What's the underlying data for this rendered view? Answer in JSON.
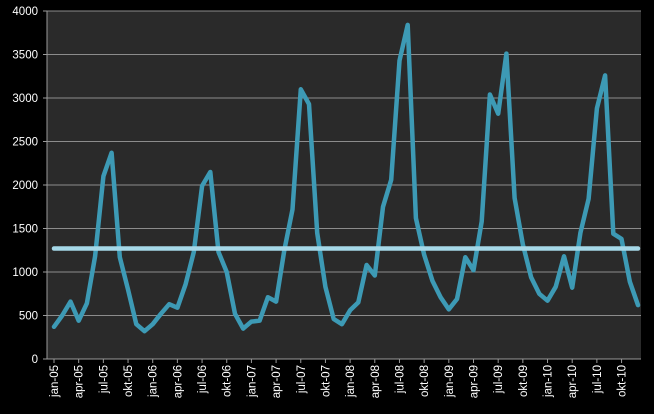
{
  "chart_data": {
    "type": "line",
    "title": "",
    "xlabel": "",
    "ylabel": "",
    "ylim": [
      0,
      4000
    ],
    "y_ticks": [
      0,
      500,
      1000,
      1500,
      2000,
      2500,
      3000,
      3500,
      4000
    ],
    "grid": true,
    "legend": "none",
    "x_tick_labels": [
      "jan-05",
      "apr-05",
      "jul-05",
      "okt-05",
      "jan-06",
      "apr-06",
      "jul-06",
      "okt-06",
      "jan-07",
      "apr-07",
      "jul-07",
      "okt-07",
      "jan-08",
      "apr-08",
      "jul-08",
      "okt-08",
      "jan-09",
      "apr-09",
      "jul-09",
      "okt-09",
      "jan-10",
      "apr-10",
      "jul-10",
      "okt-10"
    ],
    "categories": [
      "jan-05",
      "feb-05",
      "mar-05",
      "apr-05",
      "maj-05",
      "jun-05",
      "jul-05",
      "aug-05",
      "sep-05",
      "okt-05",
      "nov-05",
      "dec-05",
      "jan-06",
      "feb-06",
      "mar-06",
      "apr-06",
      "maj-06",
      "jun-06",
      "jul-06",
      "aug-06",
      "sep-06",
      "okt-06",
      "nov-06",
      "dec-06",
      "jan-07",
      "feb-07",
      "mar-07",
      "apr-07",
      "maj-07",
      "jun-07",
      "jul-07",
      "aug-07",
      "sep-07",
      "okt-07",
      "nov-07",
      "dec-07",
      "jan-08",
      "feb-08",
      "mar-08",
      "apr-08",
      "maj-08",
      "jun-08",
      "jul-08",
      "aug-08",
      "sep-08",
      "okt-08",
      "nov-08",
      "dec-08",
      "jan-09",
      "feb-09",
      "mar-09",
      "apr-09",
      "maj-09",
      "jun-09",
      "jul-09",
      "aug-09",
      "sep-09",
      "okt-09",
      "nov-09",
      "dec-09",
      "jan-10",
      "feb-10",
      "mar-10",
      "apr-10",
      "maj-10",
      "jun-10",
      "jul-10",
      "aug-10",
      "sep-10",
      "okt-10",
      "nov-10",
      "dec-10"
    ],
    "series": [
      {
        "color": "#3d9ab5",
        "values": [
          370,
          500,
          660,
          440,
          640,
          1180,
          2100,
          2370,
          1170,
          800,
          400,
          320,
          400,
          520,
          630,
          590,
          860,
          1230,
          1990,
          2150,
          1230,
          1000,
          520,
          350,
          430,
          440,
          710,
          660,
          1250,
          1720,
          3100,
          2930,
          1450,
          830,
          460,
          400,
          560,
          650,
          1080,
          960,
          1750,
          2060,
          3430,
          3840,
          1620,
          1200,
          900,
          710,
          570,
          690,
          1170,
          1020,
          1580,
          3040,
          2820,
          3510,
          1850,
          1320,
          940,
          750,
          670,
          830,
          1180,
          820,
          1450,
          1840,
          2880,
          3260,
          1440,
          1380,
          890,
          620
        ]
      },
      {
        "color": "#a5d8e8",
        "values": [
          1270,
          1270,
          1270,
          1270,
          1270,
          1270,
          1270,
          1270,
          1270,
          1270,
          1270,
          1270,
          1270,
          1270,
          1270,
          1270,
          1270,
          1270,
          1270,
          1270,
          1270,
          1270,
          1270,
          1270,
          1270,
          1270,
          1270,
          1270,
          1270,
          1270,
          1270,
          1270,
          1270,
          1270,
          1270,
          1270,
          1270,
          1270,
          1270,
          1270,
          1270,
          1270,
          1270,
          1270,
          1270,
          1270,
          1270,
          1270,
          1270,
          1270,
          1270,
          1270,
          1270,
          1270,
          1270,
          1270,
          1270,
          1270,
          1270,
          1270,
          1270,
          1270,
          1270,
          1270,
          1270,
          1270,
          1270,
          1270,
          1270,
          1270,
          1270,
          1270
        ]
      }
    ],
    "colors": {
      "page_background": "#000000",
      "plot_background": "#2a2a2a",
      "gridline": "#8c8c8c",
      "axis": "#9a9a9a",
      "text": "#ffffff"
    }
  }
}
